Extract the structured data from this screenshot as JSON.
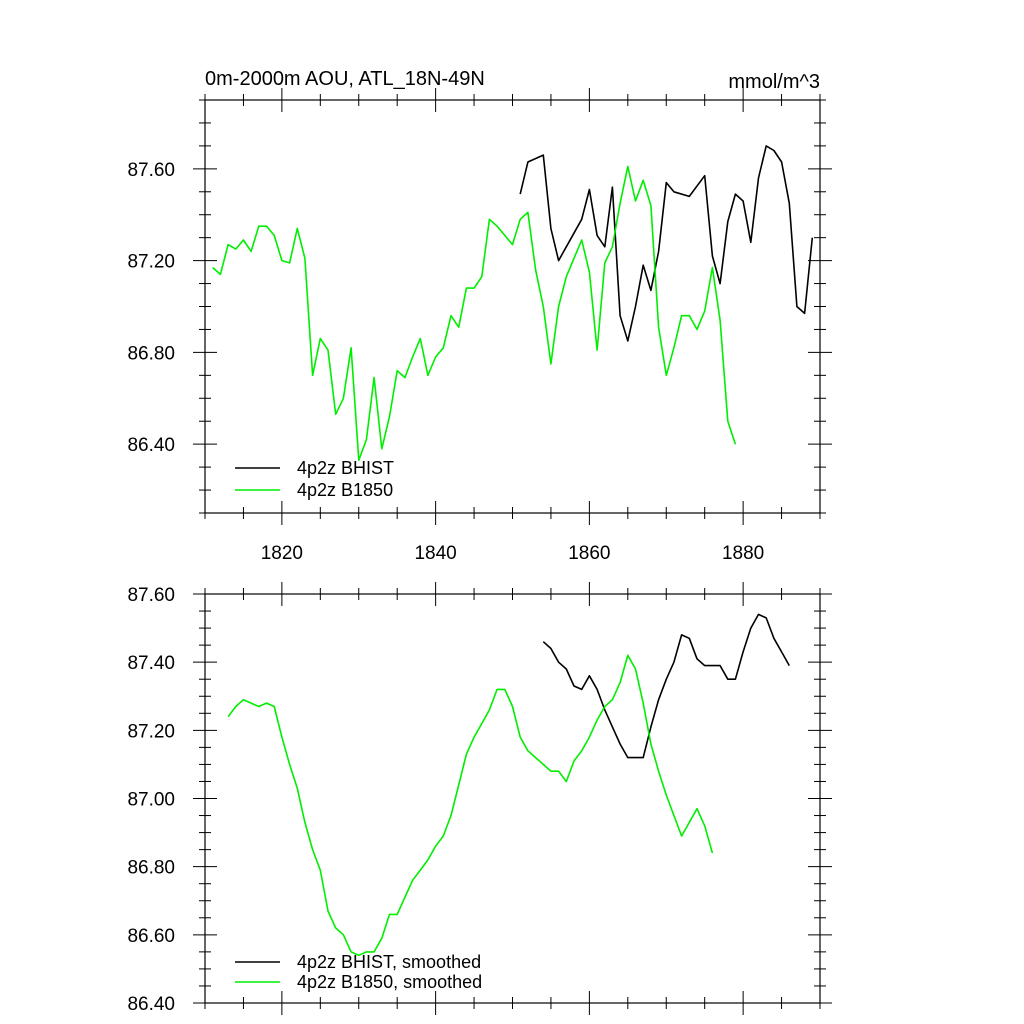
{
  "colors": {
    "bhist": "#000000",
    "b1850": "#00ee00",
    "axis": "#000000",
    "background": "#ffffff"
  },
  "chart_data": [
    {
      "type": "line",
      "title": "0m-2000m AOU, ATL_18N-49N",
      "units": "mmol/m^3",
      "xlim": [
        1810,
        1890
      ],
      "ylim": [
        86.1,
        87.9
      ],
      "x_ticks": [
        1820,
        1840,
        1860,
        1880
      ],
      "x_tick_labels": [
        "1820",
        "1840",
        "1860",
        "1880"
      ],
      "y_ticks": [
        86.4,
        86.8,
        87.2,
        87.6
      ],
      "y_tick_labels": [
        "86.40",
        "86.80",
        "87.20",
        "87.60"
      ],
      "legend_position": "bottom-left",
      "grid": false,
      "series": [
        {
          "name": "4p2z BHIST",
          "color": "#000000",
          "x": [
            1851,
            1852,
            1854,
            1855,
            1856,
            1857,
            1859,
            1860,
            1861,
            1862,
            1863,
            1864,
            1865,
            1866,
            1867,
            1868,
            1869,
            1870,
            1871,
            1873,
            1875,
            1876,
            1877,
            1878,
            1879,
            1880,
            1881,
            1882,
            1883,
            1884,
            1885,
            1886,
            1887,
            1888,
            1889
          ],
          "y": [
            87.49,
            87.63,
            87.66,
            87.34,
            87.2,
            87.26,
            87.38,
            87.51,
            87.31,
            87.26,
            87.52,
            86.96,
            86.85,
            87.0,
            87.18,
            87.07,
            87.24,
            87.54,
            87.5,
            87.48,
            87.57,
            87.22,
            87.1,
            87.37,
            87.49,
            87.46,
            87.28,
            87.56,
            87.7,
            87.68,
            87.63,
            87.45,
            87.0,
            86.97,
            87.3
          ]
        },
        {
          "name": "4p2z B1850",
          "color": "#00ee00",
          "x": [
            1811,
            1812,
            1813,
            1814,
            1815,
            1816,
            1817,
            1818,
            1819,
            1820,
            1821,
            1822,
            1823,
            1824,
            1825,
            1826,
            1827,
            1828,
            1829,
            1830,
            1831,
            1832,
            1833,
            1834,
            1835,
            1836,
            1837,
            1838,
            1839,
            1840,
            1841,
            1842,
            1843,
            1844,
            1845,
            1846,
            1847,
            1848,
            1849,
            1850,
            1851,
            1852,
            1853,
            1854,
            1855,
            1856,
            1857,
            1858,
            1859,
            1860,
            1861,
            1862,
            1863,
            1864,
            1865,
            1866,
            1867,
            1868,
            1869,
            1870,
            1871,
            1872,
            1873,
            1874,
            1875,
            1876,
            1877,
            1878,
            1879
          ],
          "y": [
            87.17,
            87.14,
            87.27,
            87.25,
            87.29,
            87.24,
            87.35,
            87.35,
            87.31,
            87.2,
            87.19,
            87.34,
            87.21,
            86.7,
            86.86,
            86.81,
            86.53,
            86.6,
            86.82,
            86.33,
            86.42,
            86.69,
            86.38,
            86.52,
            86.72,
            86.69,
            86.78,
            86.86,
            86.7,
            86.78,
            86.82,
            86.96,
            86.91,
            87.08,
            87.08,
            87.13,
            87.38,
            87.35,
            87.31,
            87.27,
            87.38,
            87.41,
            87.16,
            87.0,
            86.75,
            87.0,
            87.13,
            87.21,
            87.29,
            87.15,
            86.81,
            87.19,
            87.26,
            87.45,
            87.61,
            87.46,
            87.55,
            87.44,
            86.91,
            86.7,
            86.82,
            86.96,
            86.96,
            86.9,
            86.98,
            87.17,
            86.94,
            86.5,
            86.4
          ]
        }
      ],
      "legend": [
        "4p2z BHIST",
        "4p2z B1850"
      ]
    },
    {
      "type": "line",
      "title": "",
      "xlim": [
        1810,
        1890
      ],
      "ylim": [
        86.4,
        87.6
      ],
      "x_ticks": [
        1820,
        1840,
        1860,
        1880
      ],
      "y_ticks": [
        86.4,
        86.6,
        86.8,
        87.0,
        87.2,
        87.4,
        87.6
      ],
      "y_tick_labels": [
        "86.40",
        "86.60",
        "86.80",
        "87.00",
        "87.20",
        "87.40",
        "87.60"
      ],
      "legend_position": "bottom-left",
      "grid": false,
      "series": [
        {
          "name": "4p2z BHIST, smoothed",
          "color": "#000000",
          "x": [
            1854,
            1855,
            1856,
            1857,
            1858,
            1859,
            1860,
            1861,
            1862,
            1863,
            1864,
            1865,
            1866,
            1867,
            1868,
            1869,
            1870,
            1871,
            1872,
            1873,
            1874,
            1875,
            1876,
            1877,
            1878,
            1879,
            1880,
            1881,
            1882,
            1883,
            1884,
            1885,
            1886
          ],
          "y": [
            87.46,
            87.44,
            87.4,
            87.38,
            87.33,
            87.32,
            87.36,
            87.32,
            87.26,
            87.21,
            87.16,
            87.12,
            87.12,
            87.12,
            87.21,
            87.29,
            87.35,
            87.4,
            87.48,
            87.47,
            87.41,
            87.39,
            87.39,
            87.39,
            87.35,
            87.35,
            87.43,
            87.5,
            87.54,
            87.53,
            87.47,
            87.43,
            87.39
          ]
        },
        {
          "name": "4p2z B1850, smoothed",
          "color": "#00ee00",
          "x": [
            1813,
            1814,
            1815,
            1816,
            1817,
            1818,
            1819,
            1820,
            1821,
            1822,
            1823,
            1824,
            1825,
            1826,
            1827,
            1828,
            1829,
            1830,
            1831,
            1832,
            1833,
            1834,
            1835,
            1836,
            1837,
            1838,
            1839,
            1840,
            1841,
            1842,
            1843,
            1844,
            1845,
            1846,
            1847,
            1848,
            1849,
            1850,
            1851,
            1852,
            1853,
            1854,
            1855,
            1856,
            1857,
            1858,
            1859,
            1860,
            1861,
            1862,
            1863,
            1864,
            1865,
            1866,
            1867,
            1868,
            1869,
            1870,
            1871,
            1872,
            1873,
            1874,
            1875,
            1876
          ],
          "y": [
            87.24,
            87.27,
            87.29,
            87.28,
            87.27,
            87.28,
            87.27,
            87.18,
            87.1,
            87.03,
            86.93,
            86.85,
            86.79,
            86.67,
            86.62,
            86.6,
            86.55,
            86.54,
            86.55,
            86.55,
            86.59,
            86.66,
            86.66,
            86.71,
            86.76,
            86.79,
            86.82,
            86.86,
            86.89,
            86.95,
            87.04,
            87.13,
            87.18,
            87.22,
            87.26,
            87.32,
            87.32,
            87.27,
            87.18,
            87.14,
            87.12,
            87.1,
            87.08,
            87.08,
            87.05,
            87.11,
            87.14,
            87.18,
            87.23,
            87.27,
            87.29,
            87.34,
            87.42,
            87.38,
            87.28,
            87.16,
            87.08,
            87.01,
            86.95,
            86.89,
            86.93,
            86.97,
            86.92,
            86.84
          ]
        }
      ],
      "legend": [
        "4p2z BHIST, smoothed",
        "4p2z B1850, smoothed"
      ]
    }
  ]
}
